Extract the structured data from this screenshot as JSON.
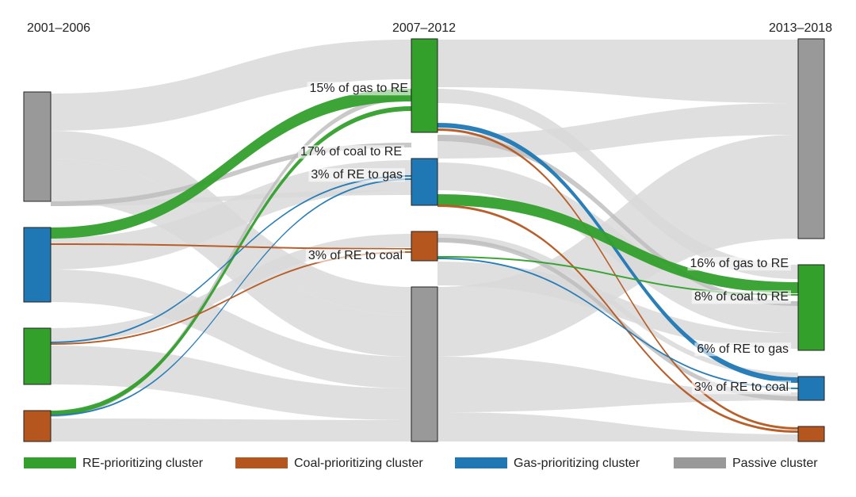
{
  "columns": [
    "2001–2006",
    "2007–2012",
    "2013–2018"
  ],
  "annotations": [
    "15% of gas to RE",
    "17% of coal to RE",
    "3% of RE to gas",
    "3% of RE to coal",
    "16% of gas to RE",
    "8% of coal to RE",
    "6% of RE to gas",
    "3% of RE to coal"
  ],
  "legend": [
    "RE-prioritizing cluster",
    "Coal-prioritizing cluster",
    "Gas-prioritizing cluster",
    "Passive cluster"
  ]
}
